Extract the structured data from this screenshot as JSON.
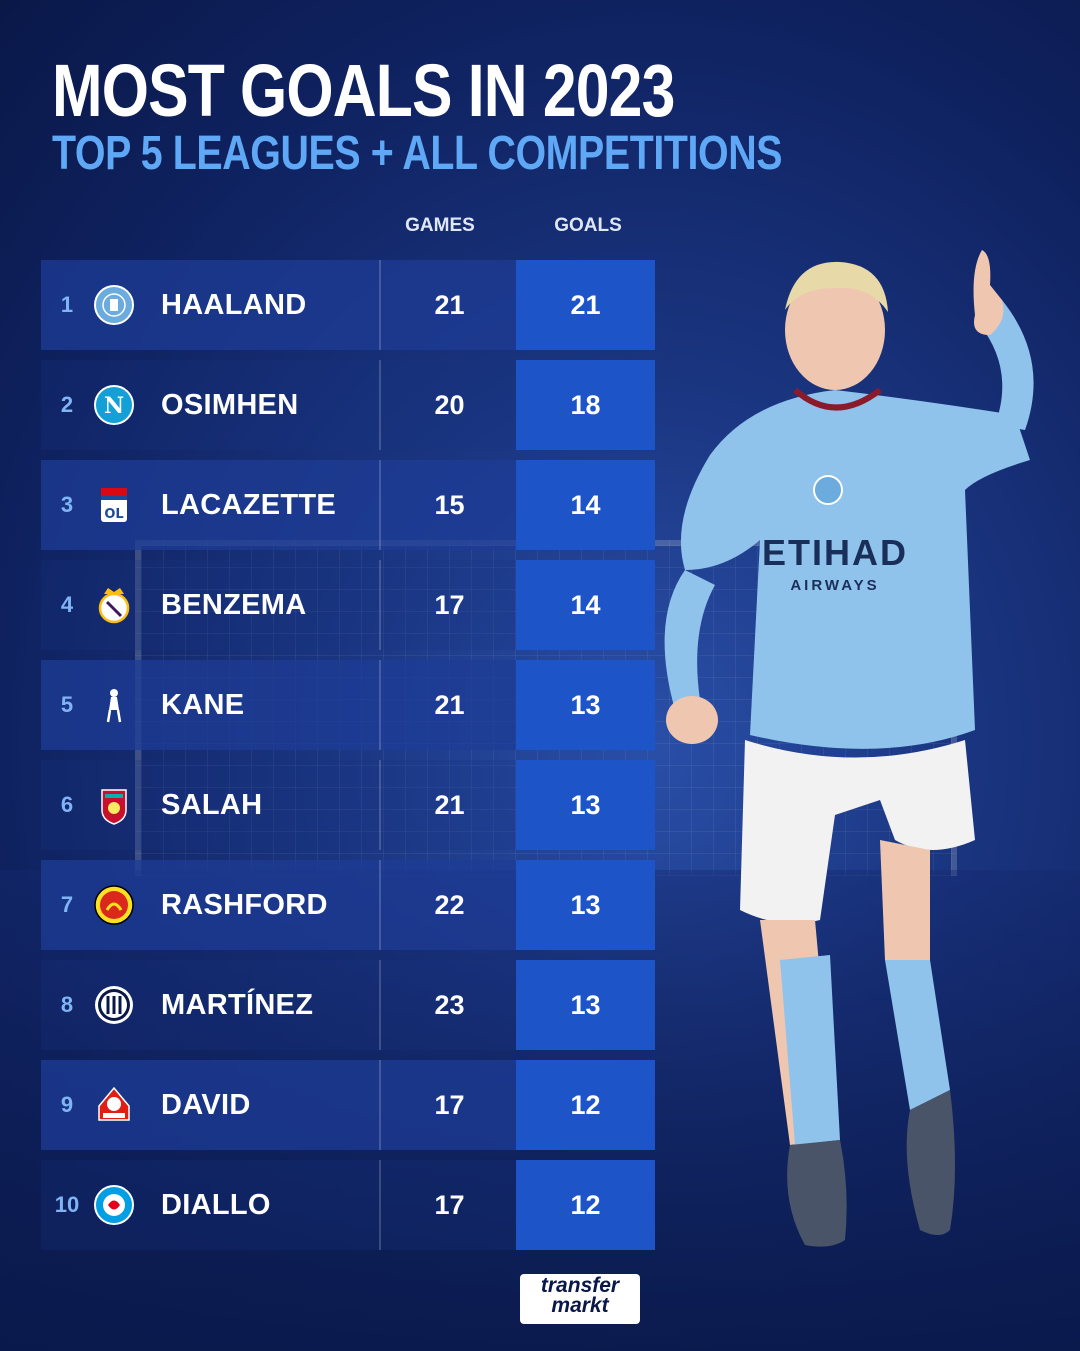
{
  "header": {
    "title": "MOST GOALS IN 2023",
    "subtitle": "TOP 5 LEAGUES + ALL COMPETITIONS"
  },
  "columns": {
    "games": "GAMES",
    "goals": "GOALS"
  },
  "rows": [
    {
      "rank": "1",
      "name": "HAALAND",
      "games": "21",
      "goals": "21",
      "crest": "man-city-crest-icon",
      "crest_color": "#6cabdd"
    },
    {
      "rank": "2",
      "name": "OSIMHEN",
      "games": "20",
      "goals": "18",
      "crest": "napoli-crest-icon",
      "crest_color": "#12a0d7"
    },
    {
      "rank": "3",
      "name": "LACAZETTE",
      "games": "15",
      "goals": "14",
      "crest": "lyon-crest-icon",
      "crest_color": "#da0812"
    },
    {
      "rank": "4",
      "name": "BENZEMA",
      "games": "17",
      "goals": "14",
      "crest": "real-madrid-crest-icon",
      "crest_color": "#febe10"
    },
    {
      "rank": "5",
      "name": "KANE",
      "games": "21",
      "goals": "13",
      "crest": "tottenham-crest-icon",
      "crest_color": "#ffffff"
    },
    {
      "rank": "6",
      "name": "SALAH",
      "games": "21",
      "goals": "13",
      "crest": "liverpool-crest-icon",
      "crest_color": "#c8102e"
    },
    {
      "rank": "7",
      "name": "RASHFORD",
      "games": "22",
      "goals": "13",
      "crest": "man-united-crest-icon",
      "crest_color": "#da291c"
    },
    {
      "rank": "8",
      "name": "MARTÍNEZ",
      "games": "23",
      "goals": "13",
      "crest": "inter-crest-icon",
      "crest_color": "#0068a8"
    },
    {
      "rank": "9",
      "name": "DAVID",
      "games": "17",
      "goals": "12",
      "crest": "lille-crest-icon",
      "crest_color": "#e01e13"
    },
    {
      "rank": "10",
      "name": "DIALLO",
      "games": "17",
      "goals": "12",
      "crest": "strasbourg-crest-icon",
      "crest_color": "#009fe3"
    }
  ],
  "brand": {
    "line1": "transfer",
    "line2": "markt"
  },
  "colors": {
    "title": "#ffffff",
    "subtitle": "#5fa8f5",
    "goals_cell": "#1d55c8",
    "background": "#0f2260"
  }
}
